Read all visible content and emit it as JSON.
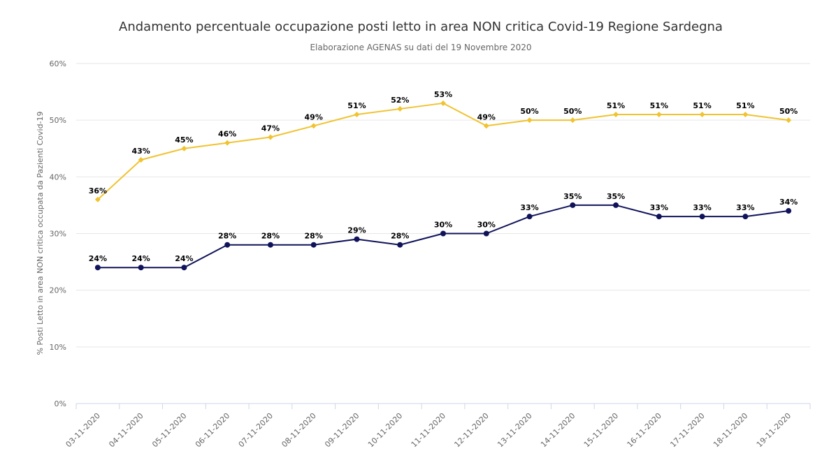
{
  "chart_data": {
    "type": "line",
    "title": "Andamento percentuale occupazione posti letto in area NON critica Covid-19 Regione Sardegna",
    "subtitle": "Elaborazione AGENAS su dati del 19 Novembre 2020",
    "xlabel": "",
    "ylabel": "% Posti Letto in area NON critica occupata da Pazienti Covid-19",
    "ylim": [
      0,
      60
    ],
    "yticks": [
      0,
      10,
      20,
      30,
      40,
      50,
      60
    ],
    "ytick_labels": [
      "0%",
      "10%",
      "20%",
      "30%",
      "40%",
      "50%",
      "60%"
    ],
    "grid": true,
    "legend": "none",
    "categories": [
      "03-11-2020",
      "04-11-2020",
      "05-11-2020",
      "06-11-2020",
      "07-11-2020",
      "08-11-2020",
      "09-11-2020",
      "10-11-2020",
      "11-11-2020",
      "12-11-2020",
      "13-11-2020",
      "14-11-2020",
      "15-11-2020",
      "16-11-2020",
      "17-11-2020",
      "18-11-2020",
      "19-11-2020"
    ],
    "series": [
      {
        "color": "#f0c330",
        "marker": "diamond",
        "values": [
          36,
          43,
          45,
          46,
          47,
          49,
          51,
          52,
          53,
          49,
          50,
          50,
          51,
          51,
          51,
          51,
          50
        ],
        "labels": [
          "36%",
          "43%",
          "45%",
          "46%",
          "47%",
          "49%",
          "51%",
          "52%",
          "53%",
          "49%",
          "50%",
          "50%",
          "51%",
          "51%",
          "51%",
          "51%",
          "50%"
        ]
      },
      {
        "color": "#10135a",
        "marker": "circle",
        "values": [
          24,
          24,
          24,
          28,
          28,
          28,
          29,
          28,
          30,
          30,
          33,
          35,
          35,
          33,
          33,
          33,
          34
        ],
        "labels": [
          "24%",
          "24%",
          "24%",
          "28%",
          "28%",
          "28%",
          "29%",
          "28%",
          "30%",
          "30%",
          "33%",
          "35%",
          "35%",
          "33%",
          "33%",
          "33%",
          "34%"
        ]
      }
    ]
  }
}
